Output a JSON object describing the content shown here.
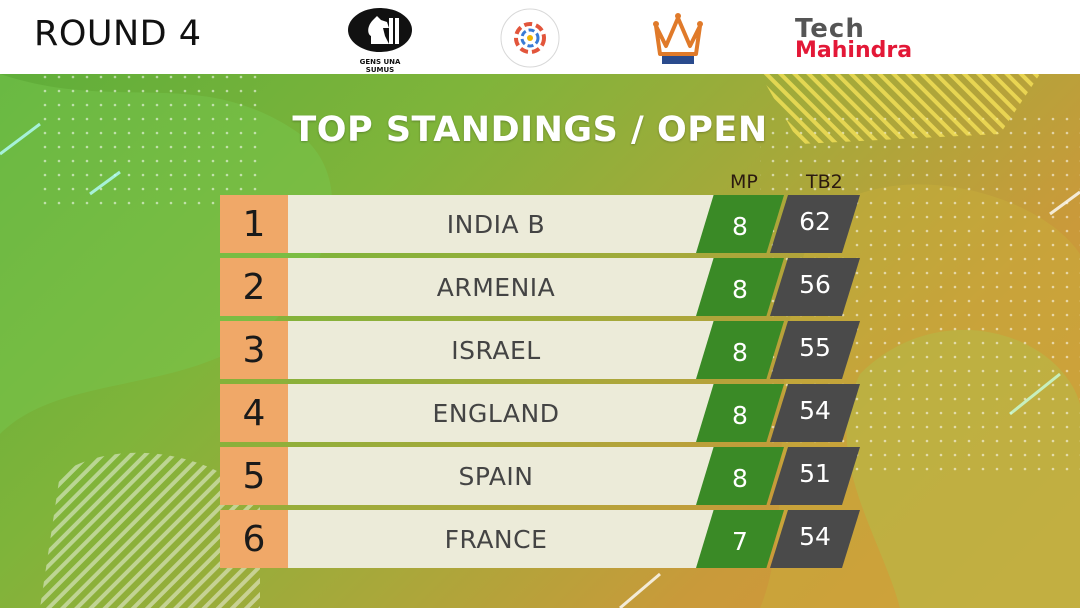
{
  "header": {
    "round_label": "ROUND 4",
    "fide_tagline": "GENS UNA SUMUS",
    "fide_name": "FIDE",
    "olympiad_ring_text": "44th FIDE CHESS OLYMPIAD",
    "olympiad_location": "CHENNAI 2022",
    "aicf_label": "AICF",
    "sponsor_tech": "Tech",
    "sponsor_mahindra": "Mahindra"
  },
  "title": "TOP STANDINGS / OPEN",
  "columns": {
    "mp": "MP",
    "tb2": "TB2"
  },
  "standings": [
    {
      "rank": "1",
      "country": "INDIA B",
      "mp": "8",
      "tb2": "62"
    },
    {
      "rank": "2",
      "country": "ARMENIA",
      "mp": "8",
      "tb2": "56"
    },
    {
      "rank": "3",
      "country": "ISRAEL",
      "mp": "8",
      "tb2": "55"
    },
    {
      "rank": "4",
      "country": "ENGLAND",
      "mp": "8",
      "tb2": "54"
    },
    {
      "rank": "5",
      "country": "SPAIN",
      "mp": "8",
      "tb2": "51"
    },
    {
      "rank": "6",
      "country": "FRANCE",
      "mp": "7",
      "tb2": "54"
    }
  ],
  "colors": {
    "rank_bg": "#f0a868",
    "country_bg": "#ecebd9",
    "mp_bg": "#3a8a26",
    "tb2_bg": "#4a4a4a",
    "sponsor_red": "#e31837"
  }
}
